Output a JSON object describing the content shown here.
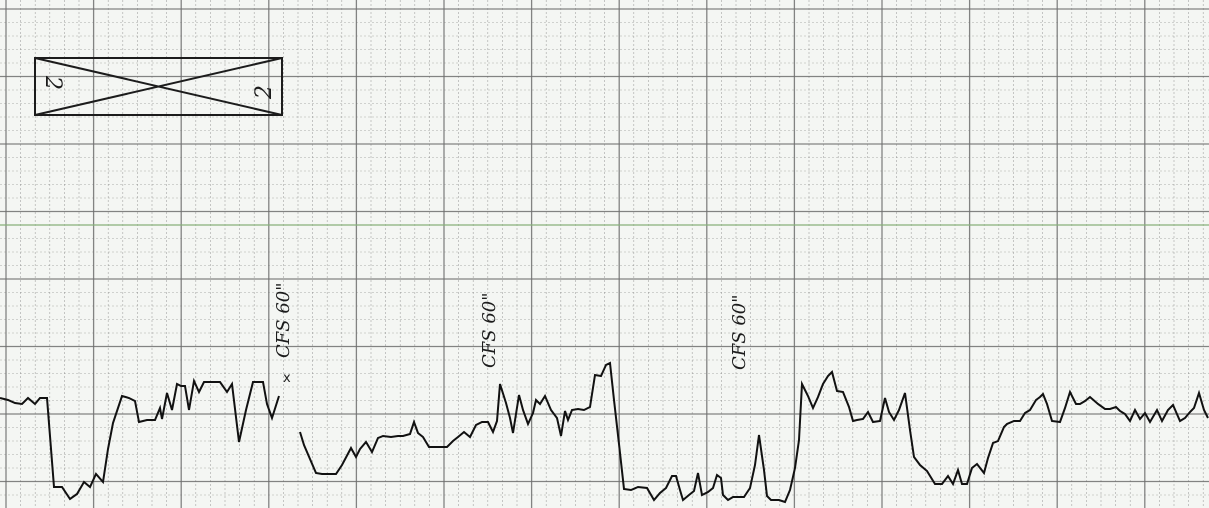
{
  "sheet": {
    "background_color": "#f4f6f3",
    "grid_color": "#6f6f6f",
    "trace_color": "#111111",
    "accent_line_color": "#86b07a"
  },
  "header_symbol": {
    "left_glyph": "2",
    "right_glyph": "2"
  },
  "annotations": [
    {
      "text": "CFS 60\""
    },
    {
      "text": "CFS 60\""
    },
    {
      "text": "CFS 60\""
    }
  ],
  "end_mark": "x"
}
